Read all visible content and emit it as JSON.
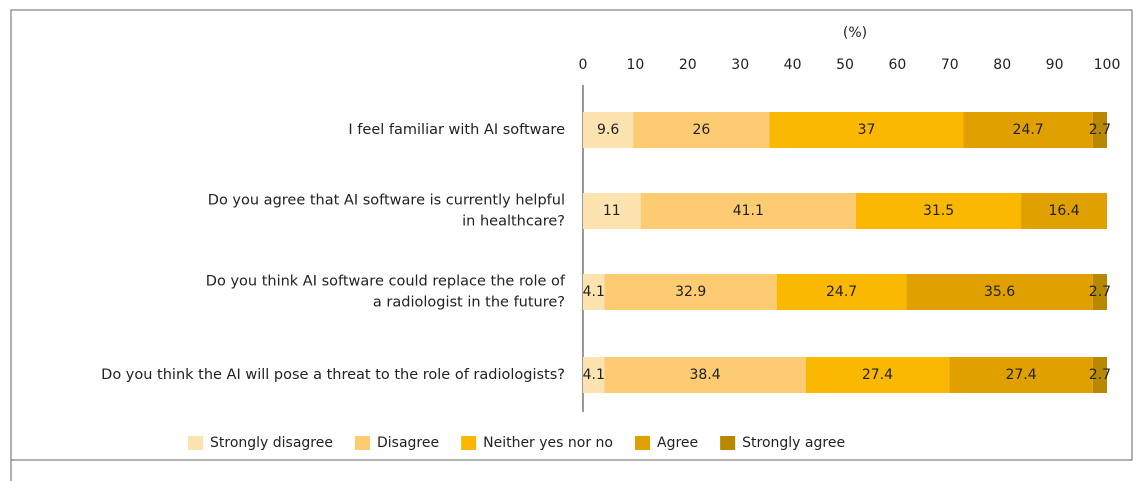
{
  "chart_data": {
    "type": "stacked_barh",
    "xlabel": "(%)",
    "categories": [
      "I feel familiar with AI software",
      "Do you agree that AI software is currently helpful\nin healthcare?",
      "Do you think AI software could replace the role of\na radiologist in the future?",
      "Do you think the AI will pose a threat to the role of radiologists?"
    ],
    "series": [
      {
        "name": "Strongly disagree",
        "color": "#fde3b0",
        "values": [
          9.6,
          11,
          4.1,
          4.1
        ]
      },
      {
        "name": "Disagree",
        "color": "#fccb72",
        "values": [
          26,
          41.1,
          32.9,
          38.4
        ]
      },
      {
        "name": "Neither yes nor no",
        "color": "#fbb800",
        "values": [
          37,
          31.5,
          24.7,
          27.4
        ]
      },
      {
        "name": "Agree",
        "color": "#e0a100",
        "values": [
          24.7,
          16.4,
          35.6,
          27.4
        ]
      },
      {
        "name": "Strongly agree",
        "color": "#b88800",
        "values": [
          2.7,
          null,
          2.7,
          2.7
        ]
      }
    ],
    "xlim": [
      0,
      100
    ],
    "xticks": [
      0,
      10,
      20,
      30,
      40,
      50,
      60,
      70,
      80,
      90,
      100
    ],
    "legend": "bottom"
  }
}
